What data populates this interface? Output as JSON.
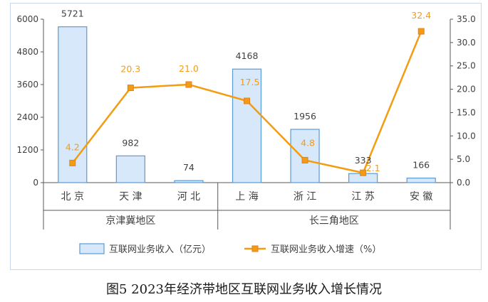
{
  "caption": "图5  2023年经济带地区互联网业务收入增长情况",
  "colors": {
    "bar_fill": "#d6e8fa",
    "bar_stroke": "#5b9bd5",
    "line": "#f39c12",
    "axis": "#595959",
    "text": "#404040",
    "rate_label": "#f39c12"
  },
  "chart_data": {
    "type": "bar",
    "categories": [
      "北  京",
      "天  津",
      "河  北",
      "上  海",
      "浙  江",
      "江  苏",
      "安  徽"
    ],
    "groups": [
      {
        "label": "京津冀地区",
        "from": 0,
        "to": 2
      },
      {
        "label": "长三角地区",
        "from": 3,
        "to": 6
      }
    ],
    "series": [
      {
        "name": "互联网业务收入（亿元）",
        "type": "bar",
        "axis": "left",
        "values": [
          5721,
          982,
          74,
          4168,
          1956,
          333,
          166
        ],
        "labels": [
          "5721",
          "982",
          "74",
          "4168",
          "1956",
          "333",
          "166"
        ]
      },
      {
        "name": "互联网业务收入增速（%）",
        "type": "line",
        "axis": "right",
        "values": [
          4.2,
          20.3,
          21.0,
          17.5,
          4.8,
          2.1,
          32.4
        ],
        "labels": [
          "4.2",
          "20.3",
          "21.0",
          "17.5",
          "4.8",
          "2.1",
          "32.4"
        ]
      }
    ],
    "y_left": {
      "min": 0,
      "max": 6000,
      "ticks": [
        0,
        1200,
        2400,
        3600,
        4800,
        6000
      ],
      "tick_labels": [
        "0",
        "1200",
        "2400",
        "3600",
        "4800",
        "6000"
      ]
    },
    "y_right": {
      "min": 0,
      "max": 35,
      "ticks": [
        0,
        5,
        10,
        15,
        20,
        25,
        30,
        35
      ],
      "tick_labels": [
        "0.0",
        "5.0",
        "10.0",
        "15.0",
        "20.0",
        "25.0",
        "30.0",
        "35.0"
      ]
    },
    "legend_position": "bottom",
    "grid": false
  }
}
